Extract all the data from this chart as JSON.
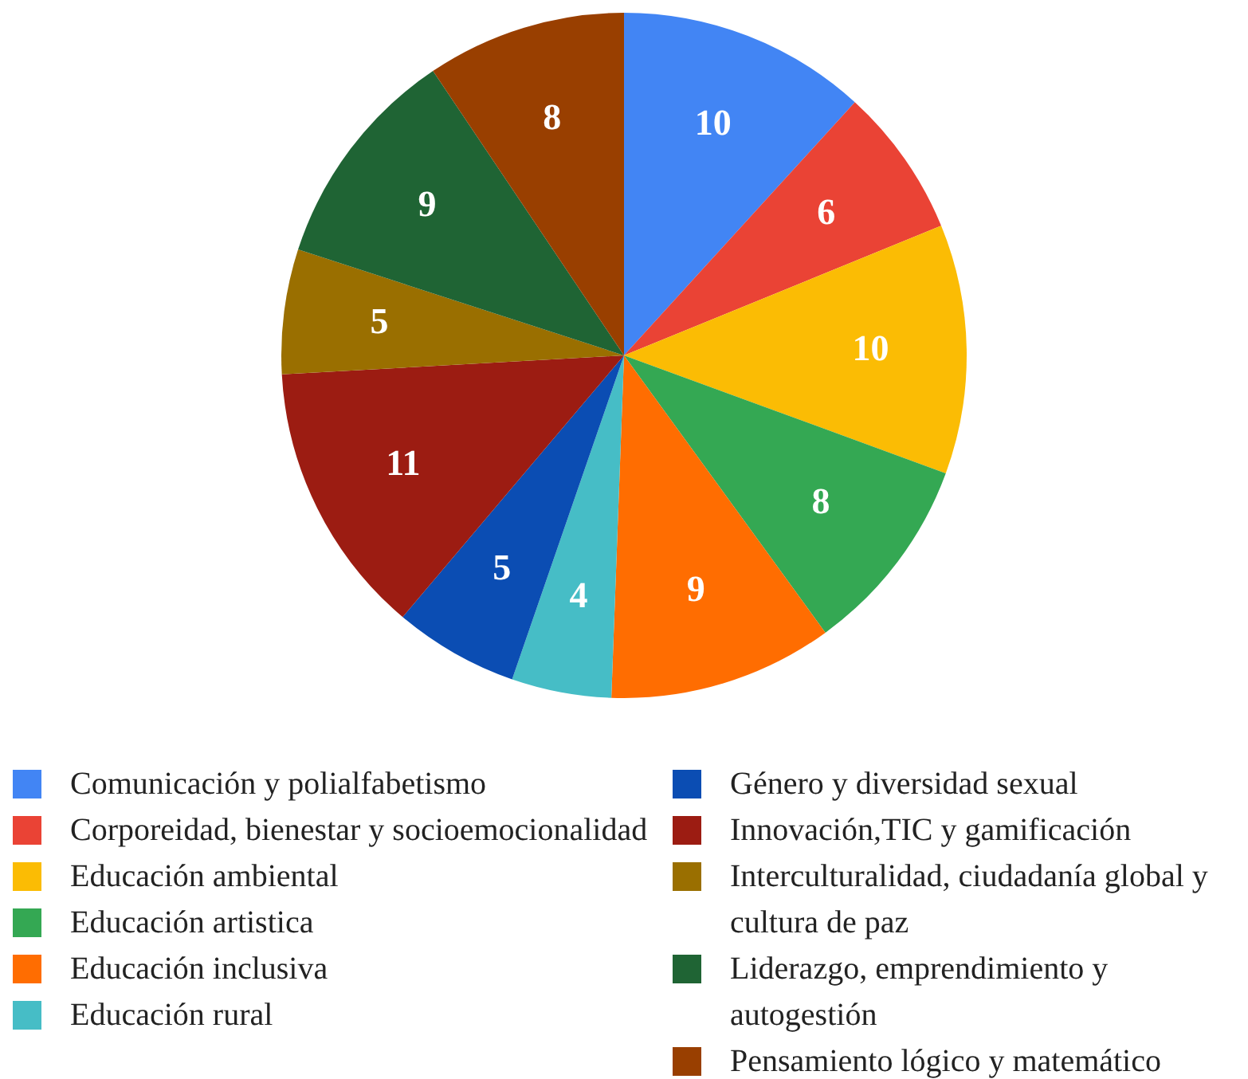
{
  "chart_data": {
    "type": "pie",
    "categories": [
      "Comunicación y polialfabetismo",
      "Corporeidad, bienestar y socioemocionalidad",
      "Educación ambiental",
      "Educación artistica",
      "Educación inclusiva",
      "Educación rural",
      "Género y diversidad sexual",
      "Innovación,TIC y gamificación",
      "Interculturalidad, ciudadanía global y cultura de paz",
      "Liderazgo, emprendimiento y autogestión",
      "Pensamiento lógico y matemático"
    ],
    "values": [
      10,
      6,
      10,
      8,
      9,
      4,
      5,
      11,
      5,
      9,
      8
    ],
    "colors": [
      "#4285f4",
      "#ea4335",
      "#fbbc04",
      "#34a853",
      "#ff6d01",
      "#46bdc6",
      "#0b4db3",
      "#9c1c12",
      "#9a6f00",
      "#1f6434",
      "#993f00"
    ],
    "data_labels": true,
    "legend": "bottom"
  }
}
